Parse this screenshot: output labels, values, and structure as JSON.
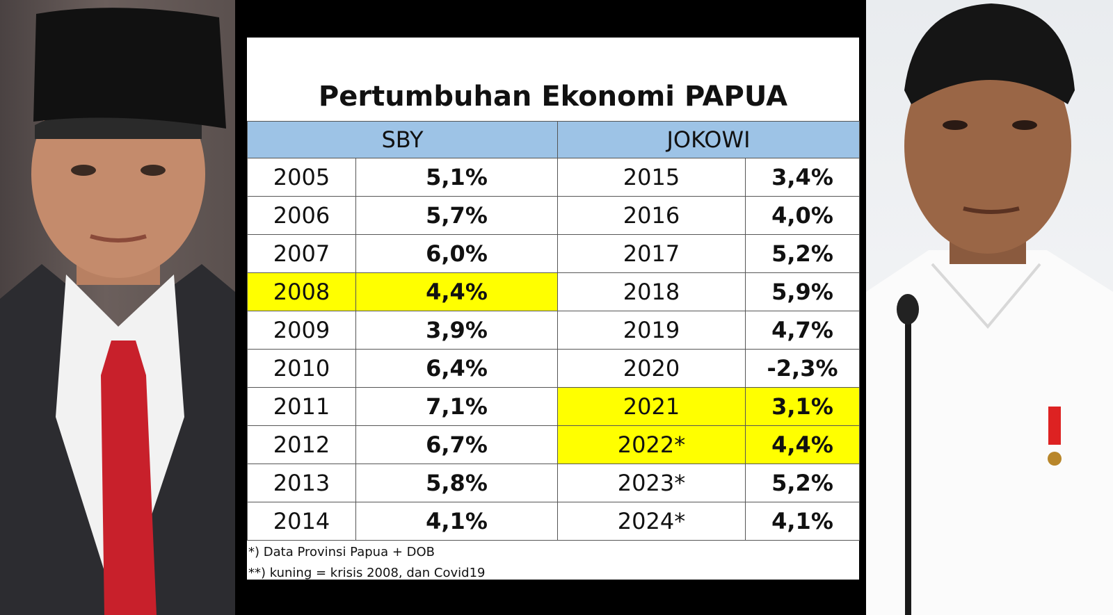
{
  "chart_data": {
    "type": "table",
    "title": "Pertumbuhan Ekonomi PAPUA",
    "columns": [
      "SBY",
      "JOKOWI"
    ],
    "series": [
      {
        "name": "SBY",
        "rows": [
          {
            "year": "2005",
            "value": "5,1%",
            "highlight": false
          },
          {
            "year": "2006",
            "value": "5,7%",
            "highlight": false
          },
          {
            "year": "2007",
            "value": "6,0%",
            "highlight": false
          },
          {
            "year": "2008",
            "value": "4,4%",
            "highlight": true
          },
          {
            "year": "2009",
            "value": "3,9%",
            "highlight": false
          },
          {
            "year": "2010",
            "value": "6,4%",
            "highlight": false
          },
          {
            "year": "2011",
            "value": "7,1%",
            "highlight": false
          },
          {
            "year": "2012",
            "value": "6,7%",
            "highlight": false
          },
          {
            "year": "2013",
            "value": "5,8%",
            "highlight": false
          },
          {
            "year": "2014",
            "value": "4,1%",
            "highlight": false
          }
        ]
      },
      {
        "name": "JOKOWI",
        "rows": [
          {
            "year": "2015",
            "value": "3,4%",
            "highlight": false
          },
          {
            "year": "2016",
            "value": "4,0%",
            "highlight": false
          },
          {
            "year": "2017",
            "value": "5,2%",
            "highlight": false
          },
          {
            "year": "2018",
            "value": "5,9%",
            "highlight": false
          },
          {
            "year": "2019",
            "value": "4,7%",
            "highlight": false
          },
          {
            "year": "2020",
            "value": "-2,3%",
            "highlight": false
          },
          {
            "year": "2021",
            "value": "3,1%",
            "highlight": true
          },
          {
            "year": "2022*",
            "value": "4,4%",
            "highlight": true
          },
          {
            "year": "2023*",
            "value": "5,2%",
            "highlight": false
          },
          {
            "year": "2024*",
            "value": "4,1%",
            "highlight": false
          }
        ]
      }
    ],
    "notes": [
      "*) Data Provinsi Papua + DOB",
      "**) kuning = krisis 2008, dan Covid19"
    ]
  },
  "colors": {
    "header_bg": "#9dc3e6",
    "highlight": "#ffff00"
  }
}
